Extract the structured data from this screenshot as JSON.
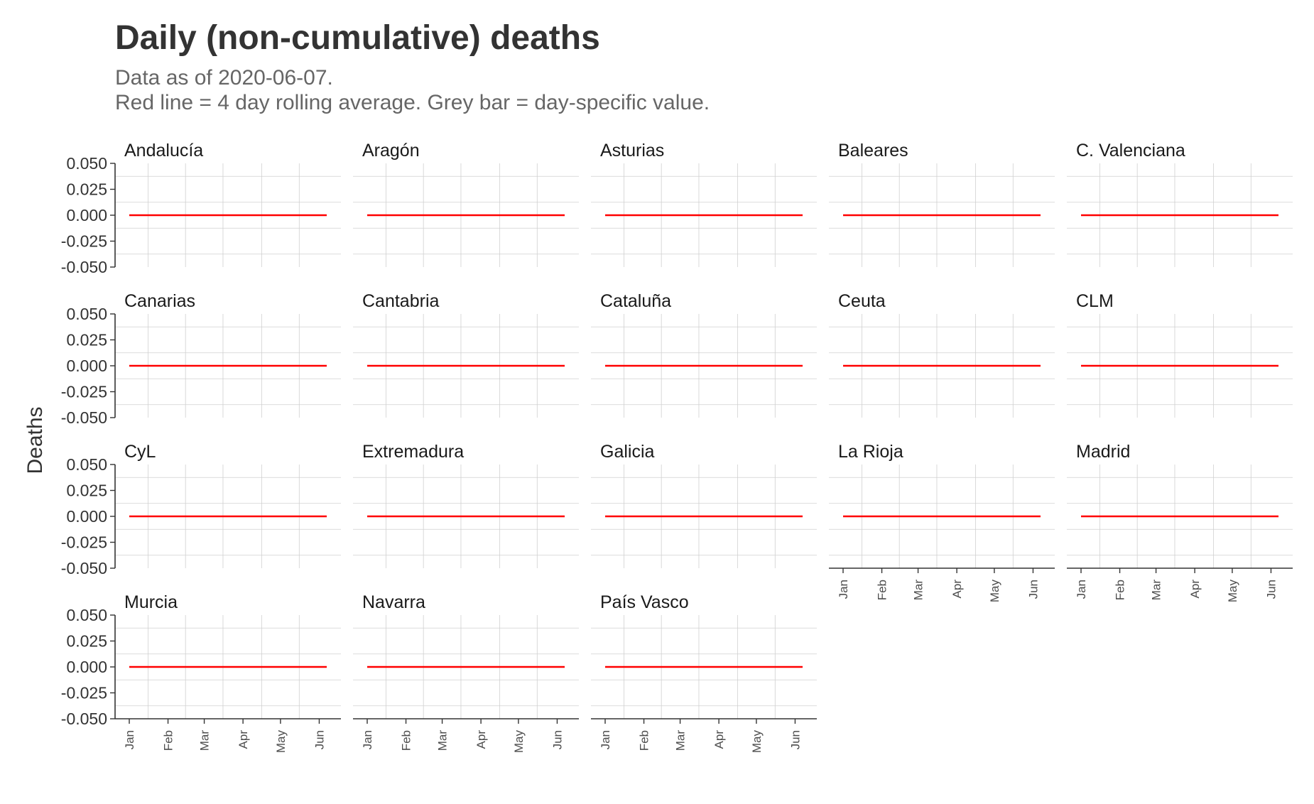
{
  "chart_data": {
    "type": "bar",
    "title": "Daily (non-cumulative) deaths",
    "subtitle": [
      "Data as of 2020-06-07.",
      "Red line = 4 day rolling average. Grey bar = day-specific value."
    ],
    "xlabel": "",
    "ylabel": "Deaths",
    "x_ticks": [
      "Jan",
      "Feb",
      "Mar",
      "Apr",
      "May",
      "Jun"
    ],
    "y_ticks": [
      "0.050",
      "0.025",
      "0.000",
      "-0.025",
      "-0.050"
    ],
    "ylim": [
      -0.05,
      0.05
    ],
    "x_range": [
      "2020-01-01",
      "2020-06-07"
    ],
    "grid": true,
    "colors": {
      "rolling_line": "#ff0000",
      "bar": "#999999",
      "grid": "#d0d0d0",
      "axis": "#333333"
    },
    "panels": [
      {
        "name": "Andalucía",
        "rolling_average": [
          {
            "x": "2020-01-01",
            "y": 0
          },
          {
            "x": "2020-06-07",
            "y": 0
          }
        ],
        "daily_values": []
      },
      {
        "name": "Aragón",
        "rolling_average": [
          {
            "x": "2020-01-01",
            "y": 0
          },
          {
            "x": "2020-06-07",
            "y": 0
          }
        ],
        "daily_values": []
      },
      {
        "name": "Asturias",
        "rolling_average": [
          {
            "x": "2020-01-01",
            "y": 0
          },
          {
            "x": "2020-06-07",
            "y": 0
          }
        ],
        "daily_values": []
      },
      {
        "name": "Baleares",
        "rolling_average": [
          {
            "x": "2020-01-01",
            "y": 0
          },
          {
            "x": "2020-06-07",
            "y": 0
          }
        ],
        "daily_values": []
      },
      {
        "name": "C. Valenciana",
        "rolling_average": [
          {
            "x": "2020-01-01",
            "y": 0
          },
          {
            "x": "2020-06-07",
            "y": 0
          }
        ],
        "daily_values": []
      },
      {
        "name": "Canarias",
        "rolling_average": [
          {
            "x": "2020-01-01",
            "y": 0
          },
          {
            "x": "2020-06-07",
            "y": 0
          }
        ],
        "daily_values": []
      },
      {
        "name": "Cantabria",
        "rolling_average": [
          {
            "x": "2020-01-01",
            "y": 0
          },
          {
            "x": "2020-06-07",
            "y": 0
          }
        ],
        "daily_values": []
      },
      {
        "name": "Cataluña",
        "rolling_average": [
          {
            "x": "2020-01-01",
            "y": 0
          },
          {
            "x": "2020-06-07",
            "y": 0
          }
        ],
        "daily_values": []
      },
      {
        "name": "Ceuta",
        "rolling_average": [
          {
            "x": "2020-01-01",
            "y": 0
          },
          {
            "x": "2020-06-07",
            "y": 0
          }
        ],
        "daily_values": []
      },
      {
        "name": "CLM",
        "rolling_average": [
          {
            "x": "2020-01-01",
            "y": 0
          },
          {
            "x": "2020-06-07",
            "y": 0
          }
        ],
        "daily_values": []
      },
      {
        "name": "CyL",
        "rolling_average": [
          {
            "x": "2020-01-01",
            "y": 0
          },
          {
            "x": "2020-06-07",
            "y": 0
          }
        ],
        "daily_values": []
      },
      {
        "name": "Extremadura",
        "rolling_average": [
          {
            "x": "2020-01-01",
            "y": 0
          },
          {
            "x": "2020-06-07",
            "y": 0
          }
        ],
        "daily_values": []
      },
      {
        "name": "Galicia",
        "rolling_average": [
          {
            "x": "2020-01-01",
            "y": 0
          },
          {
            "x": "2020-06-07",
            "y": 0
          }
        ],
        "daily_values": []
      },
      {
        "name": "La Rioja",
        "rolling_average": [
          {
            "x": "2020-01-01",
            "y": 0
          },
          {
            "x": "2020-06-07",
            "y": 0
          }
        ],
        "daily_values": []
      },
      {
        "name": "Madrid",
        "rolling_average": [
          {
            "x": "2020-01-01",
            "y": 0
          },
          {
            "x": "2020-06-07",
            "y": 0
          }
        ],
        "daily_values": []
      },
      {
        "name": "Murcia",
        "rolling_average": [
          {
            "x": "2020-01-01",
            "y": 0
          },
          {
            "x": "2020-06-07",
            "y": 0
          }
        ],
        "daily_values": []
      },
      {
        "name": "Navarra",
        "rolling_average": [
          {
            "x": "2020-01-01",
            "y": 0
          },
          {
            "x": "2020-06-07",
            "y": 0
          }
        ],
        "daily_values": []
      },
      {
        "name": "País Vasco",
        "rolling_average": [
          {
            "x": "2020-01-01",
            "y": 0
          },
          {
            "x": "2020-06-07",
            "y": 0
          }
        ],
        "daily_values": []
      }
    ]
  }
}
